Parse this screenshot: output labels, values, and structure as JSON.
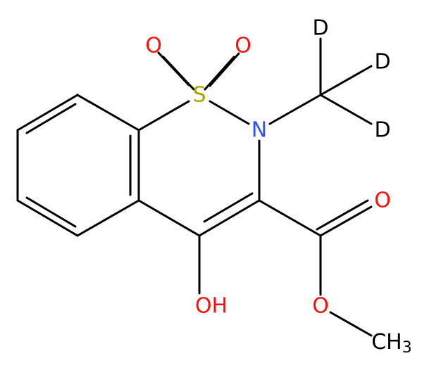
{
  "atoms": [
    {
      "label": "O"
    },
    {
      "label": "O"
    },
    {
      "label": "S"
    },
    {
      "label": "N"
    },
    {
      "label": "D"
    },
    {
      "label": "D"
    },
    {
      "label": "D"
    },
    {
      "label": "O"
    },
    {
      "label": "O"
    },
    {
      "label": "OH"
    },
    {
      "label": "CH",
      "subscript": "3"
    }
  ]
}
